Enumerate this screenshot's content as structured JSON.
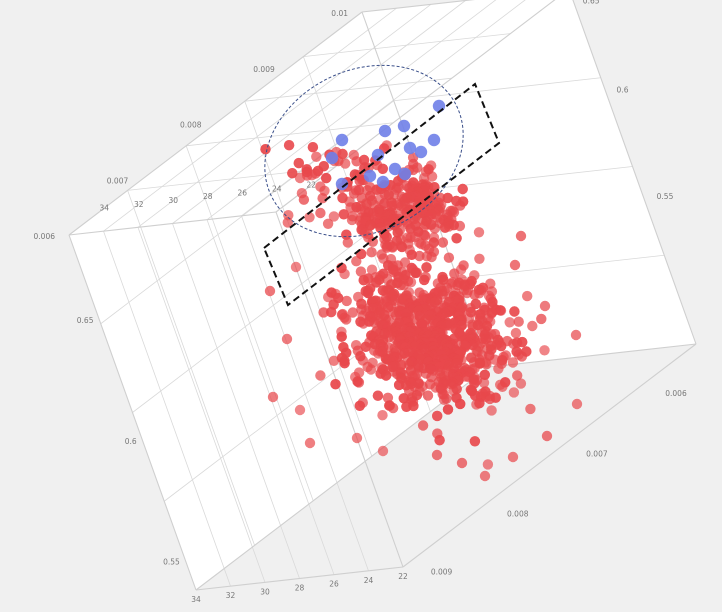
{
  "chart_data": {
    "type": "scatter",
    "projection": "3d",
    "title": "",
    "axes": {
      "depth": {
        "ticks": [
          "34",
          "32",
          "30",
          "28",
          "26",
          "24",
          "22"
        ],
        "range": [
          22,
          34
        ]
      },
      "vertical": {
        "ticks": [
          "0.55",
          "0.6",
          "0.65"
        ],
        "range": [
          0.53,
          0.68
        ]
      },
      "width": {
        "ticks": [
          "0.006",
          "0.007",
          "0.008",
          "0.009",
          "0.01"
        ],
        "range": [
          0.006,
          0.01
        ]
      }
    },
    "series": [
      {
        "color": "#e8484c",
        "point_count": 2200,
        "centroid": {
          "depth": 27,
          "vertical": 0.61,
          "width": 0.0075
        }
      },
      {
        "color": "#6f80e8",
        "point_count": 14,
        "centroid": {
          "depth": 25.5,
          "vertical": 0.655,
          "width": 0.0074
        }
      }
    ],
    "annotations": [
      "dashed-ellipse",
      "dashed-rectangle"
    ],
    "grid": true,
    "legend": "none"
  }
}
